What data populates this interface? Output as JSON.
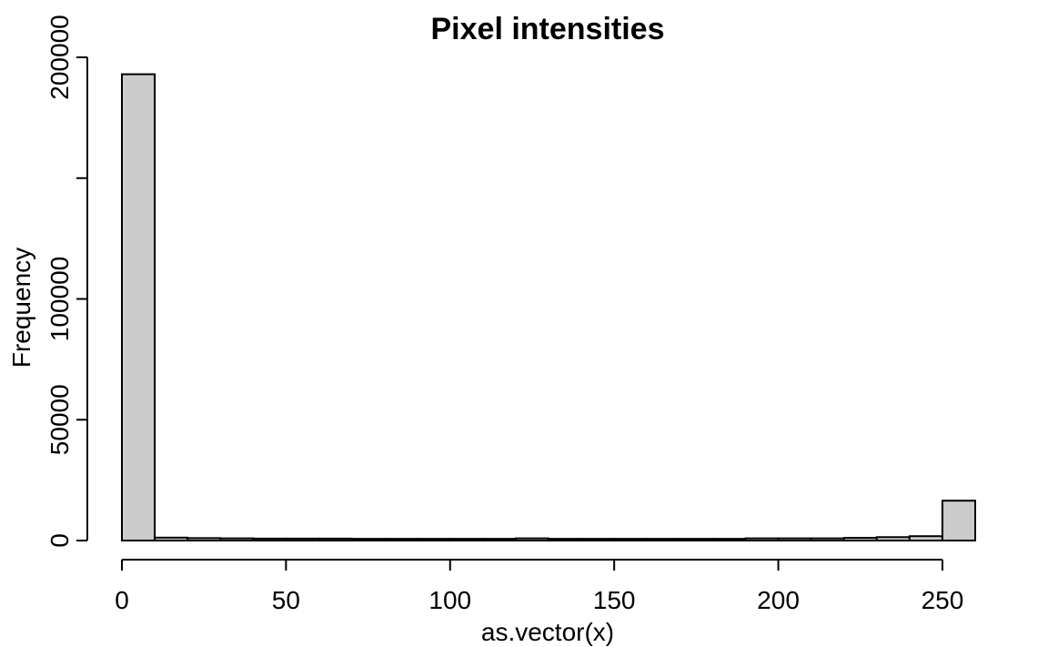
{
  "chart_data": {
    "type": "bar",
    "title": "Pixel intensities",
    "xlabel": "as.vector(x)",
    "ylabel": "Frequency",
    "bin_width": 10,
    "bins": [
      {
        "start": 0,
        "end": 10,
        "value": 193000
      },
      {
        "start": 10,
        "end": 20,
        "value": 1200
      },
      {
        "start": 20,
        "end": 30,
        "value": 1000
      },
      {
        "start": 30,
        "end": 40,
        "value": 900
      },
      {
        "start": 40,
        "end": 50,
        "value": 800
      },
      {
        "start": 50,
        "end": 60,
        "value": 800
      },
      {
        "start": 60,
        "end": 70,
        "value": 800
      },
      {
        "start": 70,
        "end": 80,
        "value": 700
      },
      {
        "start": 80,
        "end": 90,
        "value": 700
      },
      {
        "start": 90,
        "end": 100,
        "value": 700
      },
      {
        "start": 100,
        "end": 110,
        "value": 700
      },
      {
        "start": 110,
        "end": 120,
        "value": 700
      },
      {
        "start": 120,
        "end": 130,
        "value": 900
      },
      {
        "start": 130,
        "end": 140,
        "value": 700
      },
      {
        "start": 140,
        "end": 150,
        "value": 700
      },
      {
        "start": 150,
        "end": 160,
        "value": 700
      },
      {
        "start": 160,
        "end": 170,
        "value": 700
      },
      {
        "start": 170,
        "end": 180,
        "value": 700
      },
      {
        "start": 180,
        "end": 190,
        "value": 700
      },
      {
        "start": 190,
        "end": 200,
        "value": 900
      },
      {
        "start": 200,
        "end": 210,
        "value": 900
      },
      {
        "start": 210,
        "end": 220,
        "value": 900
      },
      {
        "start": 220,
        "end": 230,
        "value": 1100
      },
      {
        "start": 230,
        "end": 240,
        "value": 1400
      },
      {
        "start": 240,
        "end": 250,
        "value": 1800
      },
      {
        "start": 250,
        "end": 260,
        "value": 16500
      }
    ],
    "xlim": [
      0,
      260
    ],
    "ylim": [
      0,
      200000
    ],
    "x_ticks": [
      0,
      50,
      100,
      150,
      200,
      250
    ],
    "y_ticks": [
      0,
      50000,
      100000,
      150000,
      200000
    ],
    "y_tick_labels": [
      "0",
      "50000",
      "100000",
      "",
      "200000"
    ],
    "bar_color": "#cccccc",
    "border_color": "#000000",
    "grid": false,
    "legend": "none"
  }
}
